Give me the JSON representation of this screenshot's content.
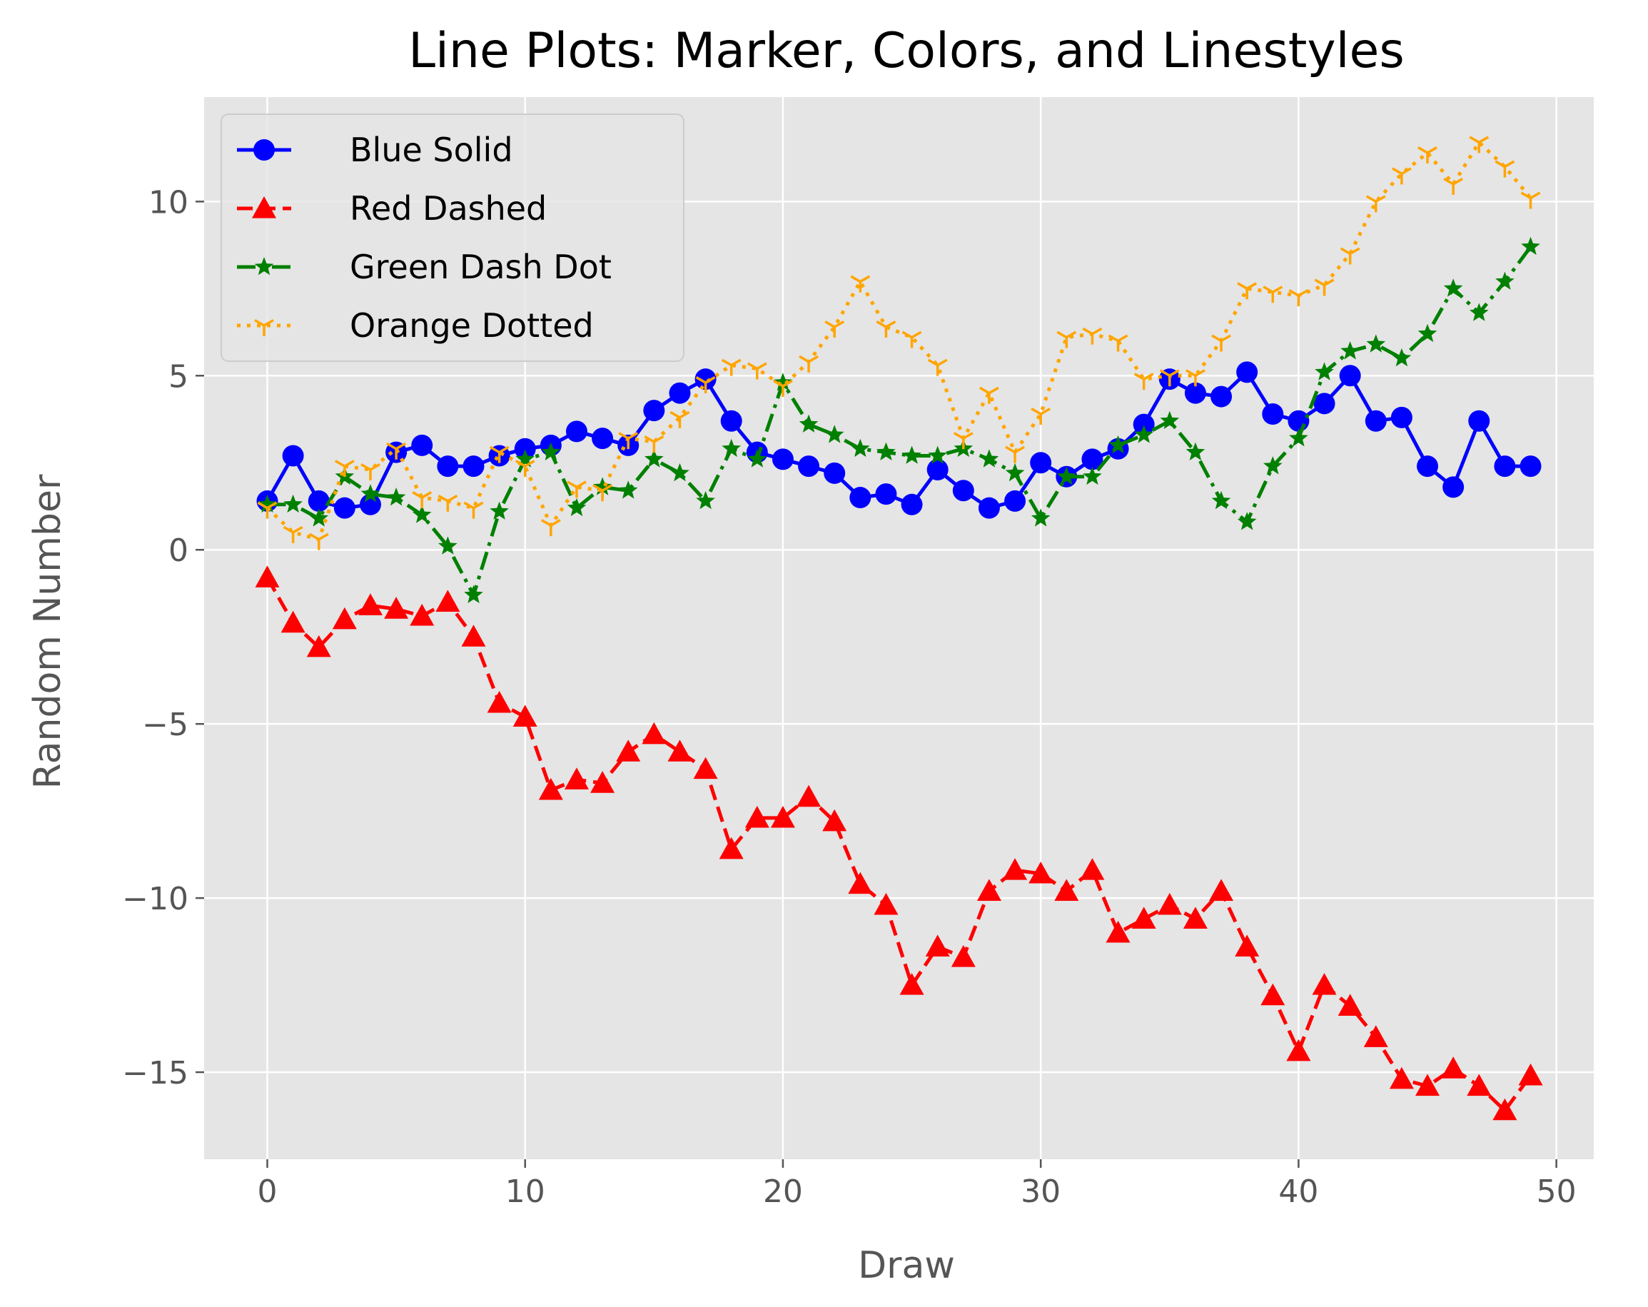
{
  "chart_data": {
    "type": "line",
    "title": "Line Plots: Marker, Colors, and Linestyles",
    "xlabel": "Draw",
    "ylabel": "Random Number",
    "xlim": [
      -2.45,
      51.45
    ],
    "ylim": [
      -17.5,
      13.0
    ],
    "xticks": [
      0,
      10,
      20,
      30,
      40,
      50
    ],
    "xtick_labels": [
      "0",
      "10",
      "20",
      "30",
      "40",
      "50"
    ],
    "yticks": [
      -15,
      -10,
      -5,
      0,
      5,
      10
    ],
    "ytick_labels": [
      "−15",
      "−10",
      "−5",
      "0",
      "5",
      "10"
    ],
    "grid": true,
    "legend_position": "upper left",
    "style": "ggplot",
    "x": [
      0,
      1,
      2,
      3,
      4,
      5,
      6,
      7,
      8,
      9,
      10,
      11,
      12,
      13,
      14,
      15,
      16,
      17,
      18,
      19,
      20,
      21,
      22,
      23,
      24,
      25,
      26,
      27,
      28,
      29,
      30,
      31,
      32,
      33,
      34,
      35,
      36,
      37,
      38,
      39,
      40,
      41,
      42,
      43,
      44,
      45,
      46,
      47,
      48,
      49
    ],
    "series": [
      {
        "name": "Blue Solid",
        "color": "#0000ff",
        "linestyle": "solid",
        "marker": "circle",
        "values": [
          1.4,
          2.7,
          1.4,
          1.2,
          1.3,
          2.8,
          3.0,
          2.4,
          2.4,
          2.7,
          2.9,
          3.0,
          3.4,
          3.2,
          3.0,
          4.0,
          4.5,
          4.9,
          3.7,
          2.8,
          2.6,
          2.4,
          2.2,
          1.5,
          1.6,
          1.3,
          2.3,
          1.7,
          1.2,
          1.4,
          2.5,
          2.1,
          2.6,
          2.9,
          3.6,
          4.9,
          4.5,
          4.4,
          5.1,
          3.9,
          3.7,
          4.2,
          5.0,
          3.7,
          3.8,
          2.4,
          1.8,
          3.7,
          2.4,
          2.4
        ]
      },
      {
        "name": "Red Dashed",
        "color": "#ff0000",
        "linestyle": "dashed",
        "marker": "triangle",
        "values": [
          -0.8,
          -2.1,
          -2.8,
          -2.0,
          -1.6,
          -1.7,
          -1.9,
          -1.5,
          -2.5,
          -4.4,
          -4.8,
          -6.9,
          -6.6,
          -6.7,
          -5.8,
          -5.3,
          -5.8,
          -6.3,
          -8.6,
          -7.7,
          -7.7,
          -7.1,
          -7.8,
          -9.6,
          -10.2,
          -12.5,
          -11.4,
          -11.7,
          -9.8,
          -9.2,
          -9.3,
          -9.8,
          -9.2,
          -11.0,
          -10.6,
          -10.2,
          -10.6,
          -9.8,
          -11.4,
          -12.8,
          -14.4,
          -12.5,
          -13.1,
          -14.0,
          -15.2,
          -15.4,
          -14.9,
          -15.4,
          -16.1,
          -15.1
        ]
      },
      {
        "name": "Green Dash Dot",
        "color": "#008000",
        "linestyle": "dashdot",
        "marker": "star",
        "values": [
          1.3,
          1.3,
          0.9,
          2.1,
          1.6,
          1.5,
          1.0,
          0.1,
          -1.3,
          1.1,
          2.6,
          2.8,
          1.2,
          1.8,
          1.7,
          2.6,
          2.2,
          1.4,
          2.9,
          2.6,
          4.8,
          3.6,
          3.3,
          2.9,
          2.8,
          2.7,
          2.7,
          2.9,
          2.6,
          2.2,
          0.9,
          2.1,
          2.1,
          3.0,
          3.3,
          3.7,
          2.8,
          1.4,
          0.8,
          2.4,
          3.2,
          5.1,
          5.7,
          5.9,
          5.5,
          6.2,
          7.5,
          6.8,
          7.7,
          8.7
        ]
      },
      {
        "name": "Orange Dotted",
        "color": "#ffa500",
        "linestyle": "dotted",
        "marker": "tri_down",
        "values": [
          1.2,
          0.5,
          0.3,
          2.4,
          2.3,
          2.9,
          1.5,
          1.4,
          1.2,
          2.8,
          2.4,
          0.7,
          1.8,
          1.7,
          3.2,
          3.1,
          3.8,
          4.8,
          5.3,
          5.2,
          4.7,
          5.4,
          6.4,
          7.7,
          6.4,
          6.1,
          5.3,
          3.2,
          4.5,
          2.8,
          3.9,
          6.1,
          6.2,
          6.0,
          4.9,
          5.0,
          5.0,
          6.0,
          7.5,
          7.4,
          7.3,
          7.6,
          8.5,
          10.0,
          10.8,
          11.4,
          10.5,
          11.7,
          11.0,
          10.1
        ]
      }
    ]
  }
}
